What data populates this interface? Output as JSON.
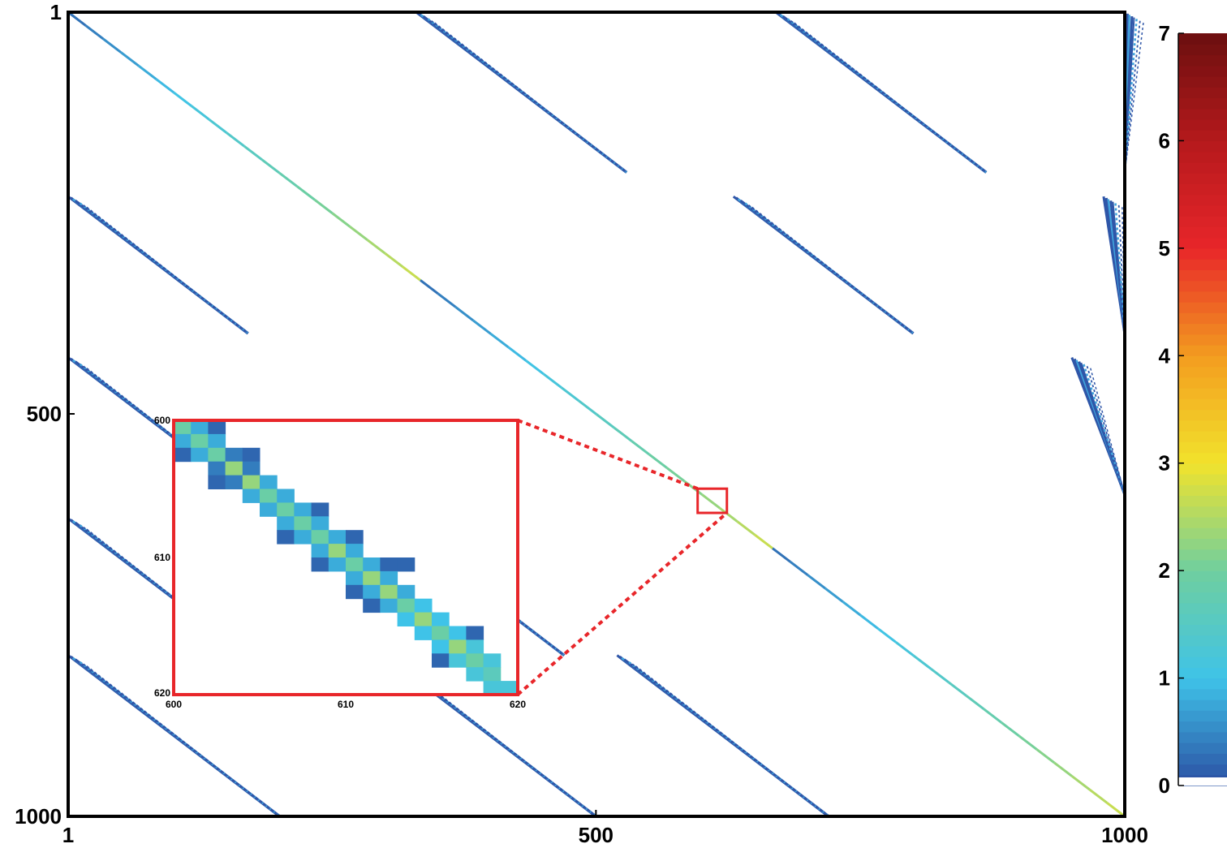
{
  "chart_data": {
    "type": "heatmap",
    "title": "",
    "xlabel": "",
    "ylabel": "",
    "matrix_size": 1000,
    "xlim": [
      1,
      1000
    ],
    "ylim": [
      1,
      1000
    ],
    "x_tick_labels": [
      "1",
      "500",
      "1000"
    ],
    "y_tick_labels": [
      "1",
      "500",
      "1000"
    ],
    "colorbar": {
      "range": [
        0,
        7
      ],
      "tick_labels": [
        "0",
        "1",
        "2",
        "3",
        "4",
        "5",
        "6",
        "7"
      ],
      "colors": [
        "#2b4fa2",
        "#3fc3e8",
        "#6fcf9f",
        "#f2e32c",
        "#f39c1f",
        "#e8262a",
        "#b5191c",
        "#6b0f0f"
      ]
    },
    "main_diagonal": {
      "row_start": 1,
      "row_end": 1000,
      "max_value": 2.5
    },
    "off_diagonal_bands": [
      {
        "row_range": [
          1,
          200
        ],
        "col_start": 330
      },
      {
        "row_range": [
          1,
          200
        ],
        "col_start": 670
      },
      {
        "row_range": [
          1,
          200
        ],
        "col_start": 1000
      },
      {
        "row_range": [
          230,
          400
        ],
        "col_start": 1
      },
      {
        "row_range": [
          230,
          400
        ],
        "col_start": 630
      },
      {
        "row_range": [
          230,
          400
        ],
        "col_start": 980
      },
      {
        "row_range": [
          430,
          600
        ],
        "col_start": 1
      },
      {
        "row_range": [
          430,
          600
        ],
        "col_start": 950
      },
      {
        "row_range": [
          630,
          800
        ],
        "col_start": 1
      },
      {
        "row_range": [
          630,
          800
        ],
        "col_start": 300
      },
      {
        "row_range": [
          800,
          1000
        ],
        "col_start": 1
      },
      {
        "row_range": [
          800,
          1000
        ],
        "col_start": 300
      },
      {
        "row_range": [
          800,
          1000
        ],
        "col_start": 520
      }
    ],
    "inset": {
      "row_range": [
        600,
        620
      ],
      "col_range": [
        600,
        620
      ],
      "x_tick_labels": [
        "600",
        "610",
        "620"
      ],
      "y_tick_labels": [
        "600",
        "610",
        "620"
      ],
      "cells": [
        [
          600,
          600,
          1.9
        ],
        [
          600,
          601,
          0.8
        ],
        [
          600,
          602,
          0.2
        ],
        [
          601,
          600,
          0.8
        ],
        [
          601,
          601,
          1.9
        ],
        [
          601,
          602,
          0.8
        ],
        [
          602,
          600,
          0.2
        ],
        [
          602,
          601,
          0.8
        ],
        [
          602,
          602,
          1.9
        ],
        [
          602,
          603,
          0.4
        ],
        [
          602,
          604,
          0.2
        ],
        [
          603,
          602,
          0.4
        ],
        [
          603,
          603,
          2.3
        ],
        [
          603,
          604,
          0.4
        ],
        [
          604,
          602,
          0.2
        ],
        [
          604,
          603,
          0.4
        ],
        [
          604,
          604,
          2.3
        ],
        [
          604,
          605,
          0.8
        ],
        [
          605,
          604,
          0.8
        ],
        [
          605,
          605,
          1.9
        ],
        [
          605,
          606,
          0.8
        ],
        [
          606,
          605,
          0.8
        ],
        [
          606,
          606,
          1.9
        ],
        [
          606,
          607,
          0.8
        ],
        [
          606,
          608,
          0.2
        ],
        [
          607,
          606,
          0.8
        ],
        [
          607,
          607,
          1.9
        ],
        [
          607,
          608,
          0.8
        ],
        [
          608,
          606,
          0.2
        ],
        [
          608,
          607,
          0.8
        ],
        [
          608,
          608,
          1.9
        ],
        [
          608,
          609,
          0.8
        ],
        [
          608,
          610,
          0.2
        ],
        [
          609,
          608,
          0.8
        ],
        [
          609,
          609,
          2.3
        ],
        [
          609,
          610,
          0.8
        ],
        [
          610,
          608,
          0.2
        ],
        [
          610,
          609,
          0.8
        ],
        [
          610,
          610,
          1.9
        ],
        [
          610,
          611,
          0.8
        ],
        [
          610,
          612,
          0.2
        ],
        [
          610,
          613,
          0.2
        ],
        [
          611,
          610,
          0.8
        ],
        [
          611,
          611,
          2.3
        ],
        [
          611,
          612,
          0.8
        ],
        [
          612,
          610,
          0.2
        ],
        [
          612,
          611,
          0.8
        ],
        [
          612,
          612,
          2.3
        ],
        [
          612,
          613,
          0.8
        ],
        [
          613,
          611,
          0.2
        ],
        [
          613,
          612,
          0.8
        ],
        [
          613,
          613,
          1.9
        ],
        [
          613,
          614,
          1.0
        ],
        [
          614,
          613,
          1.0
        ],
        [
          614,
          614,
          2.3
        ],
        [
          614,
          615,
          1.0
        ],
        [
          615,
          614,
          1.0
        ],
        [
          615,
          615,
          1.9
        ],
        [
          615,
          616,
          1.0
        ],
        [
          615,
          617,
          0.2
        ],
        [
          616,
          615,
          1.0
        ],
        [
          616,
          616,
          2.3
        ],
        [
          616,
          617,
          1.2
        ],
        [
          617,
          615,
          0.2
        ],
        [
          617,
          616,
          1.2
        ],
        [
          617,
          617,
          1.9
        ],
        [
          617,
          618,
          1.2
        ],
        [
          618,
          617,
          1.2
        ],
        [
          618,
          618,
          1.6
        ],
        [
          619,
          618,
          1.2
        ],
        [
          619,
          619,
          1.2
        ]
      ]
    }
  }
}
